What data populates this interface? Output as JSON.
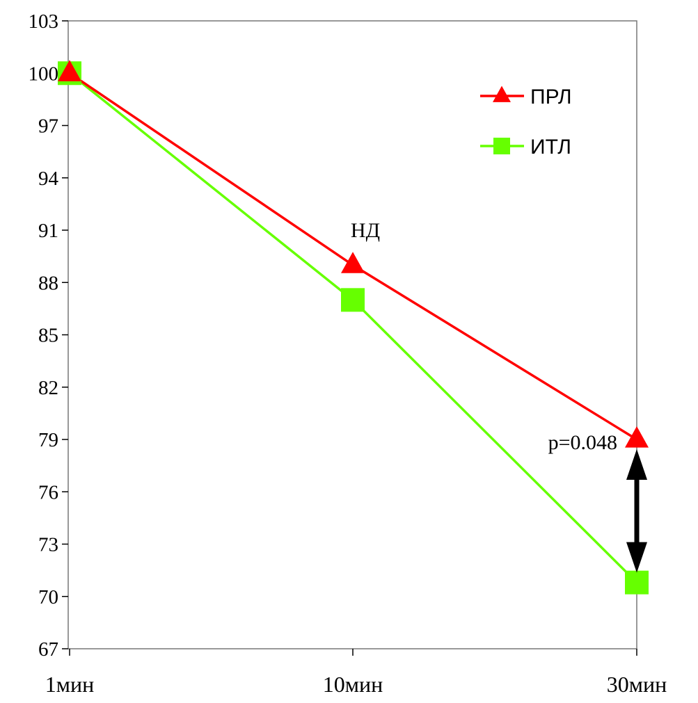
{
  "chart_data": {
    "type": "line",
    "title": "",
    "xlabel": "",
    "ylabel": "",
    "categories": [
      "1мин",
      "10мин",
      "30мин"
    ],
    "ylim": [
      67,
      103
    ],
    "yticks": [
      67,
      70,
      73,
      76,
      79,
      82,
      85,
      88,
      91,
      94,
      97,
      100,
      103
    ],
    "grid": false,
    "legend_position": "top-right",
    "series": [
      {
        "name": "ПРЛ",
        "values": [
          100,
          89,
          79
        ],
        "color": "#ff0000",
        "marker": "triangle"
      },
      {
        "name": "ИТЛ",
        "values": [
          100,
          87,
          70.8
        ],
        "color": "#66ff00",
        "marker": "square"
      }
    ],
    "annotations": [
      {
        "text": "НД",
        "category": "10мин"
      },
      {
        "text": "p=0.048",
        "category": "30мин"
      }
    ],
    "comparison_arrow": {
      "category": "30мин",
      "from": 79,
      "to": 70.8,
      "color": "#000000"
    }
  }
}
